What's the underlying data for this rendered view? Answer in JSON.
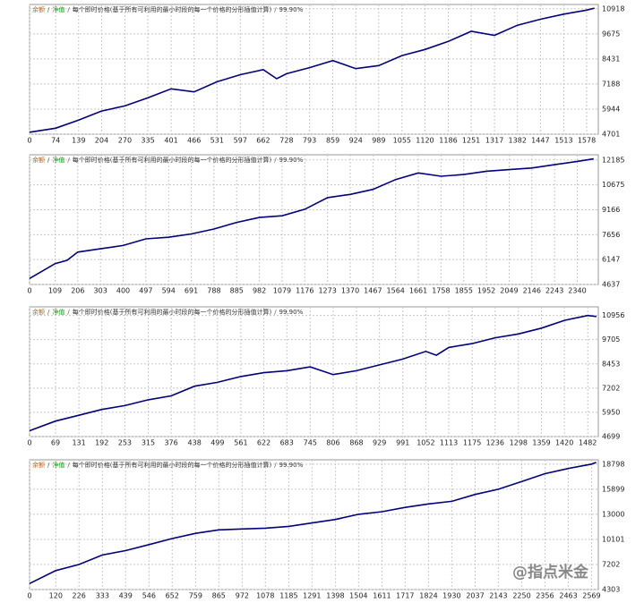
{
  "chart_data": [
    {
      "type": "line",
      "header": [
        "余额",
        "/",
        "净值",
        "/",
        "每个即时价格(基于所有可利用的最小时段的每一个价格的分形插值计算)",
        "/",
        "99.90%"
      ],
      "header_colors": [
        "#b5651d",
        "#555",
        "#1a9a1a",
        "#555",
        "#333",
        "#555",
        "#333"
      ],
      "x": [
        0,
        74,
        139,
        204,
        270,
        335,
        401,
        466,
        531,
        597,
        662,
        700,
        728,
        793,
        859,
        924,
        989,
        1055,
        1120,
        1186,
        1251,
        1317,
        1382,
        1447,
        1513,
        1578,
        1600
      ],
      "series": [
        {
          "color": "#000080",
          "values": [
            4800,
            5000,
            5400,
            5850,
            6100,
            6500,
            6950,
            6800,
            7300,
            7650,
            7900,
            7450,
            7700,
            8000,
            8350,
            7950,
            8100,
            8600,
            8900,
            9300,
            9800,
            9600,
            10100,
            10400,
            10650,
            10850,
            10950
          ]
        }
      ],
      "xlim": [
        0,
        1611
      ],
      "xticks": [
        0,
        74,
        139,
        204,
        270,
        335,
        401,
        466,
        531,
        597,
        662,
        728,
        793,
        859,
        924,
        989,
        1055,
        1120,
        1186,
        1251,
        1317,
        1382,
        1447,
        1513,
        1578
      ],
      "ylim": [
        4701,
        11130
      ],
      "yticks": [
        4701,
        5944,
        7188,
        8431,
        9675,
        10918
      ],
      "grid": true
    },
    {
      "type": "line",
      "header": [
        "余额",
        "/",
        "净值",
        "/",
        "每个即时价格(基于所有可利用的最小时段的每一个价格的分形插值计算)",
        "/",
        "99.90%"
      ],
      "header_colors": [
        "#b5651d",
        "#555",
        "#1a9a1a",
        "#555",
        "#333",
        "#555",
        "#333"
      ],
      "x": [
        0,
        109,
        160,
        206,
        303,
        400,
        497,
        594,
        691,
        788,
        885,
        982,
        1079,
        1176,
        1273,
        1370,
        1467,
        1564,
        1661,
        1758,
        1855,
        1952,
        2049,
        2146,
        2243,
        2340,
        2410
      ],
      "series": [
        {
          "color": "#000080",
          "values": [
            5000,
            5900,
            6100,
            6600,
            6800,
            7000,
            7400,
            7500,
            7700,
            8000,
            8400,
            8700,
            8800,
            9200,
            9900,
            10100,
            10400,
            11000,
            11400,
            11200,
            11300,
            11500,
            11600,
            11700,
            11900,
            12100,
            12250
          ]
        }
      ],
      "xlim": [
        0,
        2430
      ],
      "xticks": [
        0,
        109,
        206,
        303,
        400,
        497,
        594,
        691,
        788,
        885,
        982,
        1079,
        1176,
        1273,
        1370,
        1467,
        1564,
        1661,
        1758,
        1855,
        1952,
        2049,
        2146,
        2243,
        2340
      ],
      "ylim": [
        4637,
        12500
      ],
      "yticks": [
        4637,
        6147,
        7656,
        9166,
        10675,
        12185
      ],
      "grid": true
    },
    {
      "type": "line",
      "header": [
        "余额",
        "/",
        "净值",
        "/",
        "每个即时价格(基于所有可利用的最小时段的每一个价格的分形插值计算)",
        "/",
        "99.90%"
      ],
      "header_colors": [
        "#b5651d",
        "#555",
        "#1a9a1a",
        "#555",
        "#333",
        "#555",
        "#333"
      ],
      "x": [
        0,
        69,
        131,
        192,
        253,
        315,
        376,
        438,
        499,
        561,
        622,
        683,
        745,
        806,
        868,
        929,
        991,
        1052,
        1080,
        1113,
        1175,
        1236,
        1298,
        1359,
        1420,
        1482,
        1505
      ],
      "series": [
        {
          "color": "#000080",
          "values": [
            5000,
            5500,
            5800,
            6100,
            6300,
            6600,
            6800,
            7300,
            7500,
            7800,
            8000,
            8100,
            8300,
            7900,
            8100,
            8400,
            8700,
            9100,
            8900,
            9300,
            9500,
            9800,
            10000,
            10300,
            10700,
            10950,
            10900
          ]
        }
      ],
      "xlim": [
        0,
        1510
      ],
      "xticks": [
        0,
        69,
        131,
        192,
        253,
        315,
        376,
        438,
        499,
        561,
        622,
        683,
        745,
        806,
        868,
        929,
        991,
        1052,
        1113,
        1175,
        1236,
        1298,
        1359,
        1420,
        1482
      ],
      "ylim": [
        4699,
        11400
      ],
      "yticks": [
        4699,
        5950,
        7202,
        8453,
        9705,
        10956
      ],
      "grid": true
    },
    {
      "type": "line",
      "header": [
        "余额",
        "/",
        "净值",
        "/",
        "每个即时价格(基于所有可利用的最小时段的每一个价格的分形插值计算)",
        "/",
        "99.90%"
      ],
      "header_colors": [
        "#b5651d",
        "#555",
        "#1a9a1a",
        "#555",
        "#333",
        "#555",
        "#333"
      ],
      "x": [
        0,
        120,
        226,
        333,
        439,
        546,
        652,
        759,
        865,
        972,
        1078,
        1185,
        1291,
        1398,
        1504,
        1611,
        1717,
        1824,
        1930,
        2037,
        2143,
        2250,
        2356,
        2463,
        2569,
        2590
      ],
      "series": [
        {
          "color": "#000080",
          "values": [
            5000,
            6500,
            7200,
            8300,
            8800,
            9500,
            10200,
            10800,
            11200,
            11300,
            11400,
            11600,
            12000,
            12400,
            13000,
            13300,
            13800,
            14200,
            14500,
            15300,
            15900,
            16800,
            17700,
            18300,
            18800,
            19000
          ]
        }
      ],
      "xlim": [
        0,
        2600
      ],
      "xticks": [
        0,
        120,
        226,
        333,
        439,
        546,
        652,
        759,
        865,
        972,
        1078,
        1185,
        1291,
        1398,
        1504,
        1611,
        1717,
        1824,
        1930,
        2037,
        2143,
        2250,
        2356,
        2463,
        2569
      ],
      "ylim": [
        4303,
        19300
      ],
      "yticks": [
        4303,
        7202,
        10101,
        13000,
        15899,
        18798
      ],
      "grid": true
    }
  ],
  "watermark": "@指点米金"
}
